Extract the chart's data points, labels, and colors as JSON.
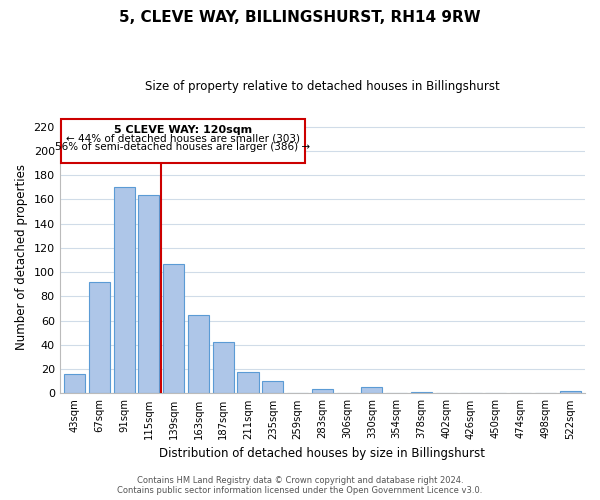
{
  "title": "5, CLEVE WAY, BILLINGSHURST, RH14 9RW",
  "subtitle": "Size of property relative to detached houses in Billingshurst",
  "xlabel": "Distribution of detached houses by size in Billingshurst",
  "ylabel": "Number of detached properties",
  "bar_labels": [
    "43sqm",
    "67sqm",
    "91sqm",
    "115sqm",
    "139sqm",
    "163sqm",
    "187sqm",
    "211sqm",
    "235sqm",
    "259sqm",
    "283sqm",
    "306sqm",
    "330sqm",
    "354sqm",
    "378sqm",
    "402sqm",
    "426sqm",
    "450sqm",
    "474sqm",
    "498sqm",
    "522sqm"
  ],
  "bar_values": [
    16,
    92,
    170,
    164,
    107,
    65,
    42,
    18,
    10,
    0,
    4,
    0,
    5,
    0,
    1,
    0,
    0,
    0,
    0,
    0,
    2
  ],
  "bar_color": "#aec6e8",
  "bar_edge_color": "#5b9bd5",
  "vline_x": 3.5,
  "vline_color": "#cc0000",
  "annotation_title": "5 CLEVE WAY: 120sqm",
  "annotation_line1": "← 44% of detached houses are smaller (303)",
  "annotation_line2": "56% of semi-detached houses are larger (386) →",
  "ylim": [
    0,
    225
  ],
  "yticks": [
    0,
    20,
    40,
    60,
    80,
    100,
    120,
    140,
    160,
    180,
    200,
    220
  ],
  "footer1": "Contains HM Land Registry data © Crown copyright and database right 2024.",
  "footer2": "Contains public sector information licensed under the Open Government Licence v3.0.",
  "background_color": "#ffffff",
  "grid_color": "#d0dce8"
}
